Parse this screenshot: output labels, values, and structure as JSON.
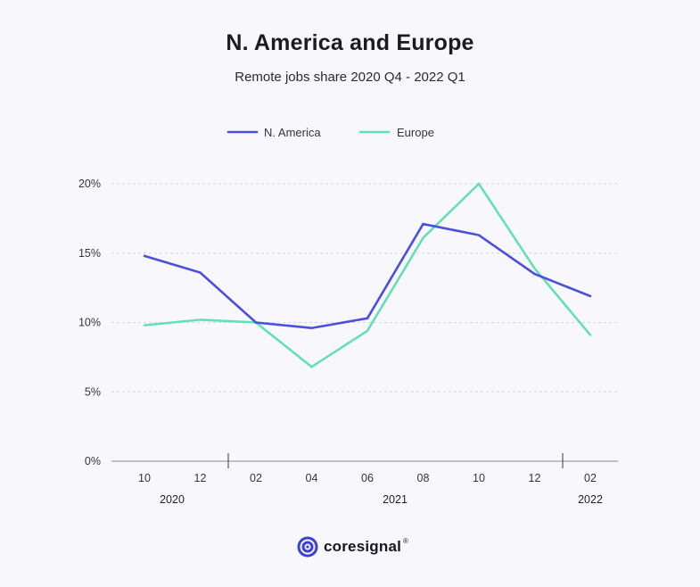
{
  "brand": {
    "name": "coresignal",
    "registered": "®"
  },
  "colors": {
    "n_america": "#4a4fe0",
    "europe": "#64e0b8",
    "background": "#f8f7fc",
    "grid": "#d6d6dc",
    "logo": "#3c3fd8"
  },
  "chart_data": {
    "type": "line",
    "title": "N. America and Europe",
    "subtitle": "Remote jobs share 2020 Q4 - 2022 Q1",
    "xlabel": "",
    "ylabel": "",
    "x": [
      "10",
      "12",
      "02",
      "04",
      "06",
      "08",
      "10",
      "12",
      "02"
    ],
    "year_labels": [
      "2020",
      "2021",
      "2022"
    ],
    "y_ticks": [
      "0%",
      "5%",
      "10%",
      "15%",
      "20%"
    ],
    "ylim": [
      0,
      20
    ],
    "grid": "horizontal dashed",
    "legend_position": "top-center",
    "series": [
      {
        "name": "N. America",
        "color": "#4a4fe0",
        "values": [
          14.8,
          13.6,
          10.0,
          9.6,
          10.3,
          17.1,
          16.3,
          13.5,
          11.9
        ]
      },
      {
        "name": "Europe",
        "color": "#64e0b8",
        "values": [
          9.8,
          10.2,
          10.0,
          6.8,
          9.4,
          16.1,
          20.0,
          13.9,
          9.1
        ]
      }
    ]
  }
}
